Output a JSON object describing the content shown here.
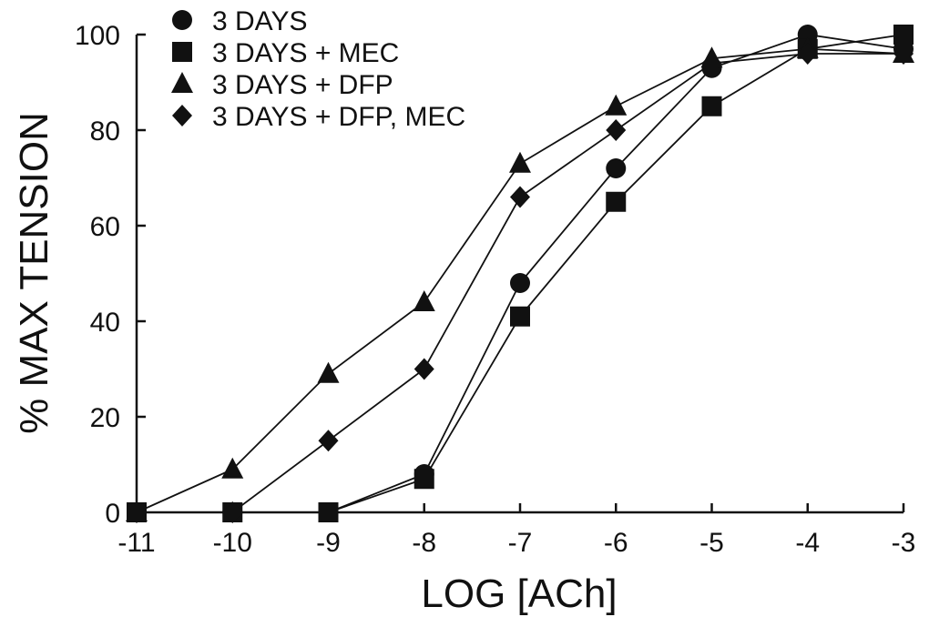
{
  "chart_data": {
    "type": "line",
    "xlabel": "LOG [ACh]",
    "ylabel": "% MAX TENSION",
    "xlim": [
      -11,
      -3
    ],
    "ylim": [
      0,
      100
    ],
    "x_ticks": [
      "-11",
      "-10",
      "-9",
      "-8",
      "-7",
      "-6",
      "-5",
      "-4",
      "-3"
    ],
    "y_ticks": [
      "0",
      "20",
      "40",
      "60",
      "80",
      "100"
    ],
    "x_tick_values": [
      -11,
      -10,
      -9,
      -8,
      -7,
      -6,
      -5,
      -4,
      -3
    ],
    "y_tick_values": [
      0,
      20,
      40,
      60,
      80,
      100
    ],
    "grid": false,
    "legend_position": "top-left",
    "series": [
      {
        "name": "3 DAYS",
        "marker": "circle",
        "x": [
          -11,
          -10,
          -9,
          -8,
          -7,
          -6,
          -5,
          -4,
          -3
        ],
        "y": [
          0,
          0,
          0,
          8,
          48,
          72,
          93,
          100,
          97
        ]
      },
      {
        "name": "3 DAYS + MEC",
        "marker": "square",
        "x": [
          -11,
          -10,
          -9,
          -8,
          -7,
          -6,
          -5,
          -4,
          -3
        ],
        "y": [
          0,
          0,
          0,
          7,
          41,
          65,
          85,
          97,
          100
        ]
      },
      {
        "name": "3 DAYS + DFP",
        "marker": "triangle",
        "x": [
          -11,
          -10,
          -9,
          -8,
          -7,
          -6,
          -5,
          -4,
          -3
        ],
        "y": [
          0,
          9,
          29,
          44,
          73,
          85,
          95,
          97,
          96
        ]
      },
      {
        "name": "3 DAYS + DFP, MEC",
        "marker": "diamond",
        "x": [
          -11,
          -10,
          -9,
          -8,
          -7,
          -6,
          -5,
          -4,
          -3
        ],
        "y": [
          0,
          0,
          15,
          30,
          66,
          80,
          94,
          96,
          96
        ]
      }
    ],
    "colors": {
      "ink": "#111111",
      "background": "#ffffff"
    }
  }
}
